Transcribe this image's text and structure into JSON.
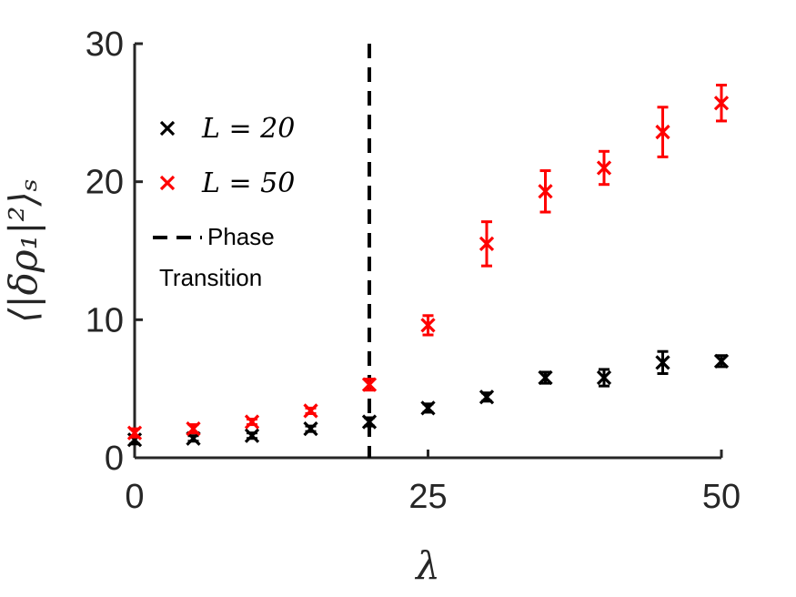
{
  "chart_data": {
    "type": "scatter",
    "xlabel": "λ",
    "ylabel": "⟨|δρ₁|²⟩ₛ",
    "xlim": [
      0,
      50
    ],
    "ylim": [
      0,
      30
    ],
    "xticks": [
      0,
      25,
      50
    ],
    "yticks": [
      0,
      10,
      20,
      30
    ],
    "grid": false,
    "legend_position": "top-left",
    "series": [
      {
        "name": "L = 20",
        "color": "#000000",
        "marker": "x",
        "points": [
          {
            "x": 0,
            "y": 1.3,
            "err": 0.3
          },
          {
            "x": 5,
            "y": 1.4,
            "err": 0.2
          },
          {
            "x": 10,
            "y": 1.6,
            "err": 0.2
          },
          {
            "x": 15,
            "y": 2.1,
            "err": 0.2
          },
          {
            "x": 20,
            "y": 2.6,
            "err": 0.3
          },
          {
            "x": 25,
            "y": 3.6,
            "err": 0.3
          },
          {
            "x": 30,
            "y": 4.4,
            "err": 0.3
          },
          {
            "x": 35,
            "y": 5.8,
            "err": 0.4
          },
          {
            "x": 40,
            "y": 5.8,
            "err": 0.6
          },
          {
            "x": 45,
            "y": 6.9,
            "err": 0.8
          },
          {
            "x": 50,
            "y": 7.0,
            "err": 0.4
          }
        ]
      },
      {
        "name": "L = 50",
        "color": "#ff0000",
        "marker": "x",
        "points": [
          {
            "x": 0,
            "y": 1.8,
            "err": 0.3
          },
          {
            "x": 5,
            "y": 2.1,
            "err": 0.3
          },
          {
            "x": 10,
            "y": 2.6,
            "err": 0.2
          },
          {
            "x": 15,
            "y": 3.4,
            "err": 0.2
          },
          {
            "x": 20,
            "y": 5.3,
            "err": 0.4
          },
          {
            "x": 25,
            "y": 9.6,
            "err": 0.7
          },
          {
            "x": 30,
            "y": 15.5,
            "err": 1.6
          },
          {
            "x": 35,
            "y": 19.3,
            "err": 1.5
          },
          {
            "x": 40,
            "y": 21.0,
            "err": 1.2
          },
          {
            "x": 45,
            "y": 23.6,
            "err": 1.8
          },
          {
            "x": 50,
            "y": 25.7,
            "err": 1.3
          }
        ]
      }
    ],
    "vline": {
      "x": 20,
      "style": "dashed",
      "color": "#000000",
      "label": "Phase Transition"
    },
    "legend": [
      {
        "label": "L = 20",
        "color": "#000000",
        "marker": "x"
      },
      {
        "label": "L = 50",
        "color": "#ff0000",
        "marker": "x"
      },
      {
        "label_line1": "Phase",
        "label_line2": "Transition",
        "style": "dashed",
        "color": "#000000"
      }
    ]
  }
}
